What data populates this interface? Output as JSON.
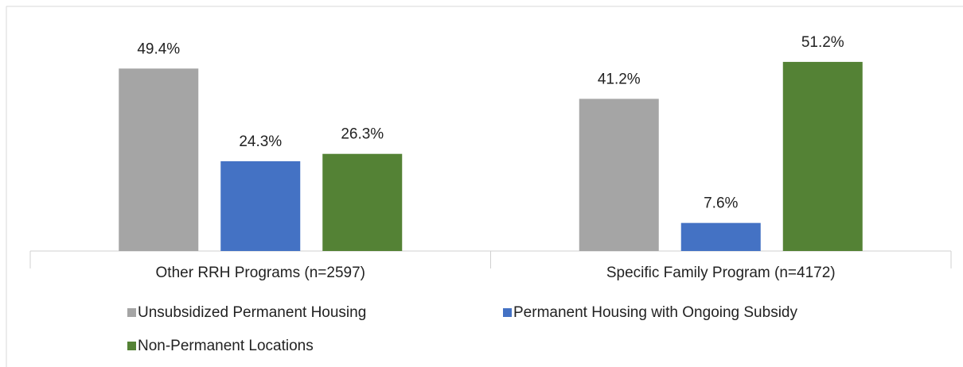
{
  "chart_data": {
    "type": "bar",
    "categories": [
      "Other RRH Programs (n=2597)",
      "Specific Family Program  (n=4172)"
    ],
    "series": [
      {
        "name": "Unsubsidized Permanent Housing",
        "color": "#a5a5a5",
        "values": [
          49.4,
          41.2
        ],
        "value_labels": [
          "49.4%",
          "41.2%"
        ]
      },
      {
        "name": "Permanent Housing with Ongoing Subsidy",
        "color": "#4472c4",
        "values": [
          24.3,
          7.6
        ],
        "value_labels": [
          "24.3%",
          "7.6%"
        ]
      },
      {
        "name": "Non-Permanent Locations",
        "color": "#548235",
        "values": [
          26.3,
          51.2
        ],
        "value_labels": [
          "26.3%",
          "51.2%"
        ]
      }
    ],
    "ylim": [
      0,
      60
    ],
    "legend": "bottom"
  }
}
